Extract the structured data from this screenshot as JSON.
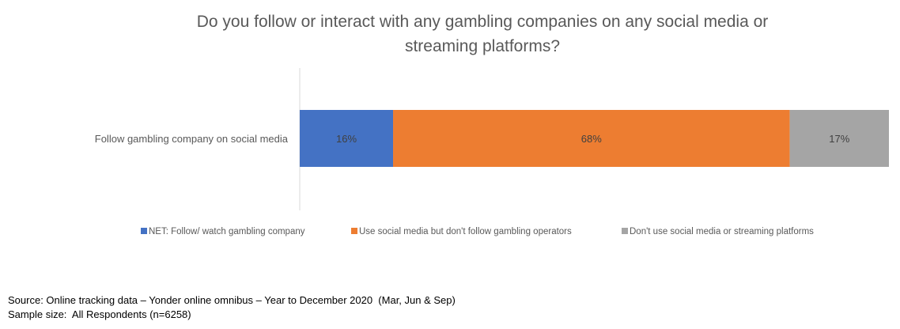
{
  "chart_data": {
    "type": "bar",
    "orientation": "horizontal",
    "stacked": true,
    "title_lines": [
      "Do you follow or interact with any gambling companies on any social media or",
      "streaming platforms?"
    ],
    "categories": [
      "Follow gambling company on social media"
    ],
    "series": [
      {
        "name": "NET: Follow/ watch gambling company",
        "values": [
          16
        ],
        "label": "16%",
        "color": "#4472C4"
      },
      {
        "name": "Use social media but don't follow gambling operators",
        "values": [
          68
        ],
        "label": "68%",
        "color": "#ED7D31"
      },
      {
        "name": "Don't use social media or streaming platforms",
        "values": [
          17
        ],
        "label": "17%",
        "color": "#A5A5A5"
      }
    ],
    "xlim": [
      0,
      101
    ],
    "grid": false,
    "legend_position": "bottom"
  },
  "footer": {
    "source": "Source: Online tracking data – Yonder online omnibus – Year to December 2020  (Mar, Jun & Sep)",
    "sample": "Sample size:  All Respondents (n=6258)"
  }
}
